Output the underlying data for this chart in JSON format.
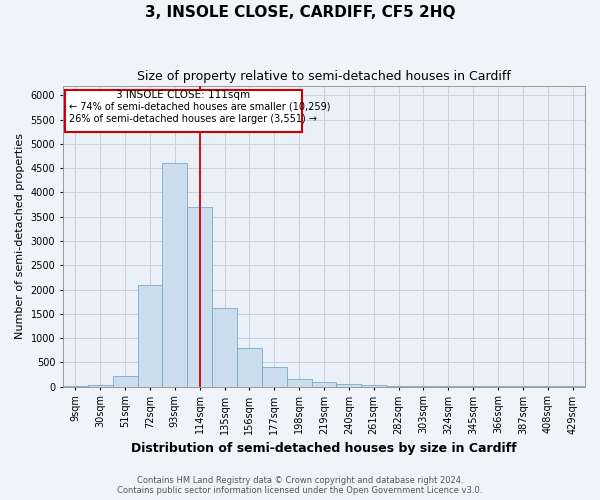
{
  "title": "3, INSOLE CLOSE, CARDIFF, CF5 2HQ",
  "subtitle": "Size of property relative to semi-detached houses in Cardiff",
  "xlabel": "Distribution of semi-detached houses by size in Cardiff",
  "ylabel": "Number of semi-detached properties",
  "footer_line1": "Contains HM Land Registry data © Crown copyright and database right 2024.",
  "footer_line2": "Contains public sector information licensed under the Open Government Licence v3.0.",
  "bin_labels": [
    "9sqm",
    "30sqm",
    "51sqm",
    "72sqm",
    "93sqm",
    "114sqm",
    "135sqm",
    "156sqm",
    "177sqm",
    "198sqm",
    "219sqm",
    "240sqm",
    "261sqm",
    "282sqm",
    "303sqm",
    "324sqm",
    "345sqm",
    "366sqm",
    "387sqm",
    "408sqm",
    "429sqm"
  ],
  "bar_values": [
    5,
    25,
    210,
    2100,
    4600,
    3700,
    1620,
    800,
    400,
    150,
    95,
    60,
    40,
    20,
    10,
    5,
    5,
    5,
    5,
    5,
    5
  ],
  "bar_color": "#ccdded",
  "bar_edge_color": "#7aaac8",
  "property_bin_index": 5,
  "vline_color": "#cc0000",
  "annotation_box_color": "#cc0000",
  "annotation_title": "3 INSOLE CLOSE: 111sqm",
  "annotation_line1": "← 74% of semi-detached houses are smaller (10,259)",
  "annotation_line2": "26% of semi-detached houses are larger (3,551) →",
  "ylim": [
    0,
    6200
  ],
  "yticks": [
    0,
    500,
    1000,
    1500,
    2000,
    2500,
    3000,
    3500,
    4000,
    4500,
    5000,
    5500,
    6000
  ],
  "grid_color": "#c8d0dc",
  "background_color": "#eaf0f8",
  "title_fontsize": 11,
  "subtitle_fontsize": 9,
  "ylabel_fontsize": 8,
  "xlabel_fontsize": 9,
  "tick_fontsize": 7,
  "footer_fontsize": 6,
  "ann_fontsize_title": 7.5,
  "ann_fontsize_lines": 7
}
